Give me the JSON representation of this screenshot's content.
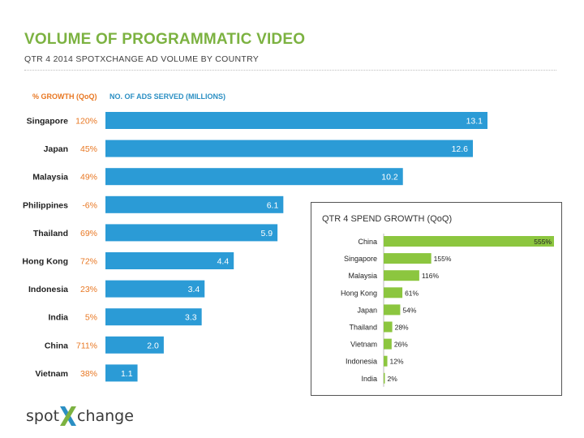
{
  "header": {
    "title": "VOLUME OF PROGRAMMATIC VIDEO",
    "subtitle": "QTR 4 2014 SPOTXCHANGE AD VOLUME BY COUNTRY"
  },
  "column_headers": {
    "growth": "% GROWTH (QoQ)",
    "ads": "NO. OF ADS SERVED (MILLIONS)"
  },
  "inset": {
    "title": "QTR 4 SPEND GROWTH (QoQ)"
  },
  "logo": {
    "part1": "spot",
    "part2": "change"
  },
  "colors": {
    "title_green": "#7cb241",
    "bar_blue": "#2b9bd6",
    "growth_orange": "#e87722",
    "inset_green": "#8cc63f"
  },
  "chart_data": [
    {
      "type": "bar",
      "orientation": "horizontal",
      "categories": [
        "Singapore",
        "Japan",
        "Malaysia",
        "Philippines",
        "Thailand",
        "Hong Kong",
        "Indonesia",
        "India",
        "China",
        "Vietnam"
      ],
      "values": [
        13.1,
        12.6,
        10.2,
        6.1,
        5.9,
        4.4,
        3.4,
        3.3,
        2.0,
        1.1
      ],
      "value_labels": [
        "13.1",
        "12.6",
        "10.2",
        "6.1",
        "5.9",
        "4.4",
        "3.4",
        "3.3",
        "2.0",
        "1.1"
      ],
      "growth_labels": [
        "120%",
        "45%",
        "49%",
        "-6%",
        "69%",
        "72%",
        "23%",
        "5%",
        "711%",
        "38%"
      ],
      "xlim": [
        0,
        13.1
      ]
    },
    {
      "type": "bar",
      "orientation": "horizontal",
      "categories": [
        "China",
        "Singapore",
        "Malaysia",
        "Hong Kong",
        "Japan",
        "Thailand",
        "Vietnam",
        "Indonesia",
        "India"
      ],
      "values": [
        555,
        155,
        116,
        61,
        54,
        28,
        26,
        12,
        2
      ],
      "value_labels": [
        "555%",
        "155%",
        "116%",
        "61%",
        "54%",
        "28%",
        "26%",
        "12%",
        "2%"
      ],
      "xlim": [
        0,
        555
      ]
    }
  ]
}
